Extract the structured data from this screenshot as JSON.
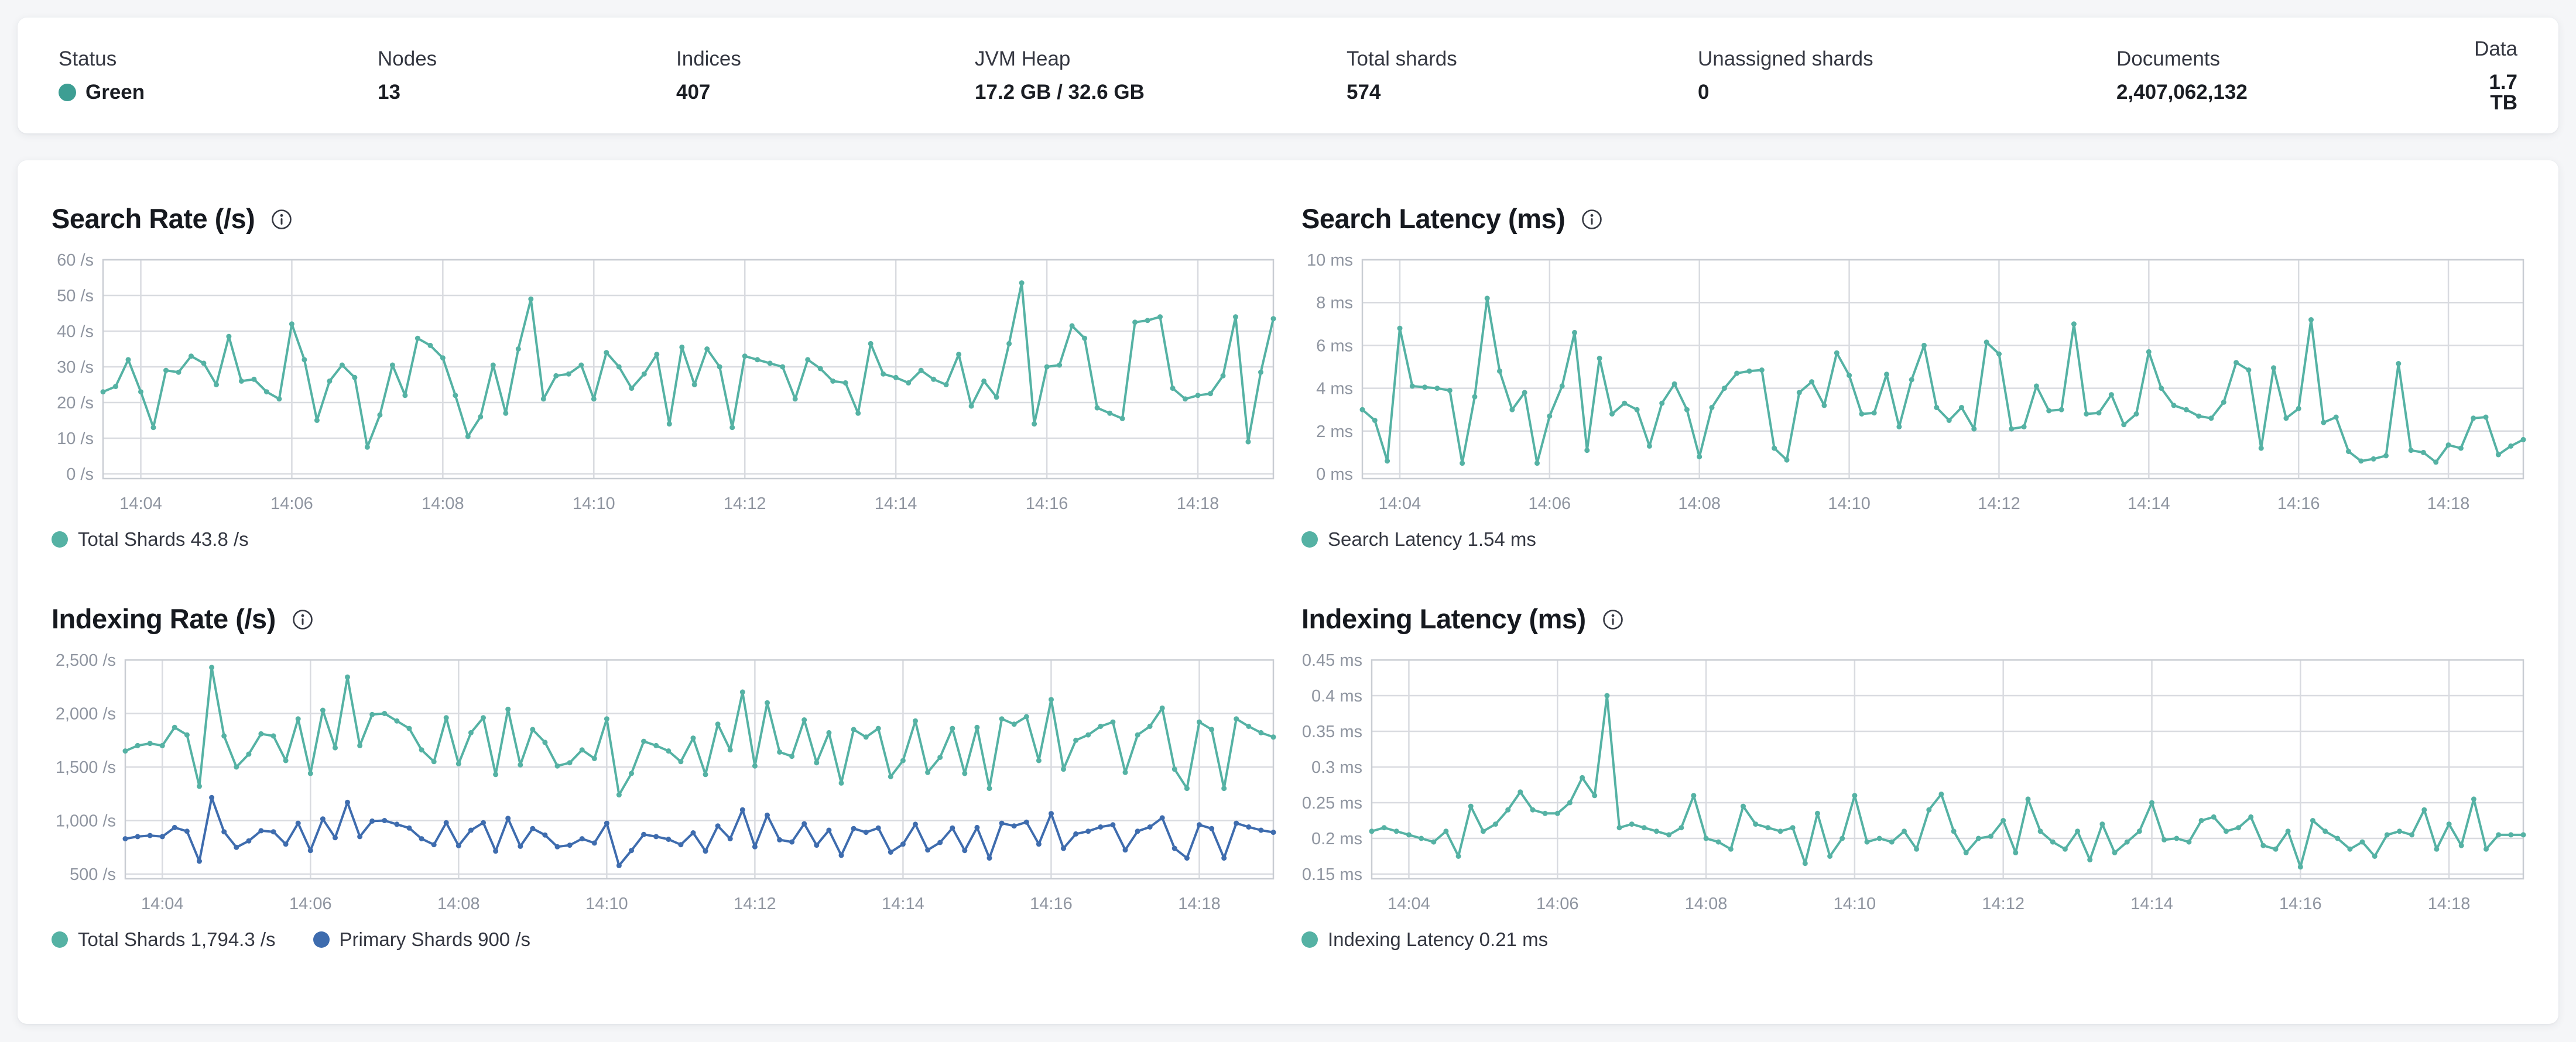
{
  "status_bar": {
    "items": [
      {
        "label": "Status",
        "value": "Green",
        "health_dot_color": "#3d9e93"
      },
      {
        "label": "Nodes",
        "value": "13"
      },
      {
        "label": "Indices",
        "value": "407"
      },
      {
        "label": "JVM Heap",
        "value": "17.2 GB / 32.6 GB"
      },
      {
        "label": "Total shards",
        "value": "574"
      },
      {
        "label": "Unassigned shards",
        "value": "0"
      },
      {
        "label": "Documents",
        "value": "2,407,062,132"
      },
      {
        "label": "Data",
        "value": "1.7 TB"
      }
    ]
  },
  "colors": {
    "teal_series": "#55b2a4",
    "blue_series": "#3e6cae",
    "grid": "#d9dbe0",
    "plot_border": "#c9cdd3",
    "axis_text": "#8f95a0",
    "title_text": "#16191f"
  },
  "chart_data": [
    {
      "type": "line",
      "title": "Search Rate (/s)",
      "ylabel": "/s",
      "y_domain": [
        0,
        60
      ],
      "y_ticks": [
        {
          "value": 0,
          "label": "0 /s"
        },
        {
          "value": 10,
          "label": "10 /s"
        },
        {
          "value": 20,
          "label": "20 /s"
        },
        {
          "value": 30,
          "label": "30 /s"
        },
        {
          "value": 40,
          "label": "40 /s"
        },
        {
          "value": 50,
          "label": "50 /s"
        },
        {
          "value": 60,
          "label": "60 /s"
        }
      ],
      "x_ticks": [
        "14:04",
        "14:06",
        "14:08",
        "14:10",
        "14:12",
        "14:14",
        "14:16",
        "14:18"
      ],
      "x_tick_indices": [
        3,
        15,
        27,
        39,
        51,
        63,
        75,
        87
      ],
      "grid": true,
      "legend_position": "bottom",
      "legend": [
        {
          "label": "Total Shards 43.8 /s",
          "color": "#55b2a4"
        }
      ],
      "series": [
        {
          "name": "Total Shards",
          "color": "#55b2a4",
          "values": [
            23,
            24.5,
            32,
            23,
            13,
            29,
            28.5,
            33,
            31,
            25,
            38.5,
            26,
            26.5,
            23,
            21,
            42,
            32,
            15,
            26,
            30.5,
            27,
            7.5,
            16.5,
            30.5,
            22,
            38,
            36,
            32.5,
            22,
            10.5,
            16,
            30.5,
            17,
            35,
            49,
            21,
            27.5,
            28,
            30.5,
            21,
            34,
            30,
            24,
            28,
            33.5,
            14,
            35.5,
            25,
            35,
            30,
            13,
            33,
            32,
            31,
            30,
            21,
            32,
            29.5,
            26,
            25.5,
            17,
            36.5,
            28,
            27,
            25.5,
            29,
            26.5,
            25,
            33.5,
            19,
            26,
            21.5,
            36.5,
            53.5,
            14,
            30,
            30.5,
            41.5,
            38,
            18.5,
            17,
            15.5,
            42.5,
            43,
            44,
            24,
            21,
            22,
            22.5,
            27.5,
            44,
            9,
            28.5,
            43.5
          ]
        }
      ]
    },
    {
      "type": "line",
      "title": "Search Latency (ms)",
      "ylabel": "ms",
      "y_domain": [
        0,
        10
      ],
      "y_ticks": [
        {
          "value": 0,
          "label": "0 ms"
        },
        {
          "value": 2,
          "label": "2 ms"
        },
        {
          "value": 4,
          "label": "4 ms"
        },
        {
          "value": 6,
          "label": "6 ms"
        },
        {
          "value": 8,
          "label": "8 ms"
        },
        {
          "value": 10,
          "label": "10 ms"
        }
      ],
      "x_ticks": [
        "14:04",
        "14:06",
        "14:08",
        "14:10",
        "14:12",
        "14:14",
        "14:16",
        "14:18"
      ],
      "x_tick_indices": [
        3,
        15,
        27,
        39,
        51,
        63,
        75,
        87
      ],
      "grid": true,
      "legend_position": "bottom",
      "legend": [
        {
          "label": "Search Latency 1.54 ms",
          "color": "#55b2a4"
        }
      ],
      "series": [
        {
          "name": "Search Latency",
          "color": "#55b2a4",
          "values": [
            3.0,
            2.5,
            0.6,
            6.8,
            4.1,
            4.05,
            4.0,
            3.9,
            0.5,
            3.6,
            8.2,
            4.8,
            3.0,
            3.8,
            0.5,
            2.7,
            4.1,
            6.6,
            1.1,
            5.4,
            2.8,
            3.3,
            3.0,
            1.3,
            3.3,
            4.2,
            3.0,
            0.8,
            3.1,
            4.0,
            4.7,
            4.8,
            4.85,
            1.2,
            0.65,
            3.8,
            4.3,
            3.2,
            5.65,
            4.6,
            2.8,
            2.85,
            4.65,
            2.2,
            4.4,
            6.0,
            3.1,
            2.5,
            3.1,
            2.1,
            6.15,
            5.6,
            2.1,
            2.2,
            4.1,
            2.95,
            3.0,
            7.0,
            2.8,
            2.85,
            3.7,
            2.3,
            2.8,
            5.7,
            4.0,
            3.2,
            3.0,
            2.7,
            2.6,
            3.35,
            5.2,
            4.85,
            1.2,
            4.95,
            2.6,
            3.05,
            7.2,
            2.4,
            2.65,
            1.05,
            0.6,
            0.7,
            0.85,
            5.15,
            1.1,
            1.0,
            0.55,
            1.35,
            1.2,
            2.6,
            2.65,
            0.9,
            1.3,
            1.6
          ]
        }
      ]
    },
    {
      "type": "line",
      "title": "Indexing Rate (/s)",
      "ylabel": "/s",
      "y_domain": [
        500,
        2500
      ],
      "y_ticks": [
        {
          "value": 500,
          "label": "500 /s"
        },
        {
          "value": 1000,
          "label": "1,000 /s"
        },
        {
          "value": 1500,
          "label": "1,500 /s"
        },
        {
          "value": 2000,
          "label": "2,000 /s"
        },
        {
          "value": 2500,
          "label": "2,500 /s"
        }
      ],
      "x_ticks": [
        "14:04",
        "14:06",
        "14:08",
        "14:10",
        "14:12",
        "14:14",
        "14:16",
        "14:18"
      ],
      "x_tick_indices": [
        3,
        15,
        27,
        39,
        51,
        63,
        75,
        87
      ],
      "grid": true,
      "legend_position": "bottom",
      "legend": [
        {
          "label": "Total Shards 1,794.3 /s",
          "color": "#55b2a4"
        },
        {
          "label": "Primary Shards 900 /s",
          "color": "#3e6cae"
        }
      ],
      "series": [
        {
          "name": "Total Shards",
          "color": "#55b2a4",
          "values": [
            1650,
            1700,
            1720,
            1700,
            1870,
            1800,
            1320,
            2430,
            1790,
            1500,
            1620,
            1810,
            1790,
            1560,
            1950,
            1440,
            2030,
            1680,
            2340,
            1700,
            1990,
            2000,
            1930,
            1860,
            1660,
            1550,
            1960,
            1530,
            1820,
            1960,
            1430,
            2040,
            1520,
            1850,
            1730,
            1510,
            1540,
            1660,
            1580,
            1950,
            1240,
            1440,
            1740,
            1700,
            1650,
            1550,
            1770,
            1430,
            1900,
            1660,
            2200,
            1510,
            2100,
            1640,
            1600,
            1940,
            1540,
            1820,
            1350,
            1850,
            1780,
            1860,
            1410,
            1560,
            1930,
            1450,
            1590,
            1860,
            1440,
            1870,
            1300,
            1950,
            1900,
            1970,
            1560,
            2130,
            1480,
            1750,
            1800,
            1880,
            1920,
            1450,
            1800,
            1880,
            2050,
            1480,
            1300,
            1920,
            1850,
            1300,
            1950,
            1880,
            1820,
            1780
          ]
        },
        {
          "name": "Primary Shards",
          "color": "#3e6cae",
          "values": [
            830,
            850,
            860,
            850,
            935,
            900,
            620,
            1215,
            895,
            750,
            810,
            905,
            895,
            780,
            975,
            720,
            1015,
            840,
            1170,
            850,
            995,
            1000,
            965,
            930,
            830,
            775,
            980,
            765,
            910,
            980,
            715,
            1020,
            760,
            925,
            865,
            755,
            770,
            830,
            790,
            975,
            580,
            720,
            870,
            850,
            825,
            775,
            885,
            715,
            950,
            830,
            1100,
            755,
            1050,
            820,
            800,
            970,
            770,
            910,
            675,
            925,
            890,
            930,
            705,
            780,
            965,
            725,
            795,
            930,
            720,
            935,
            650,
            975,
            950,
            985,
            780,
            1065,
            740,
            875,
            900,
            940,
            960,
            725,
            900,
            940,
            1025,
            740,
            650,
            960,
            925,
            650,
            975,
            940,
            910,
            890
          ]
        }
      ]
    },
    {
      "type": "line",
      "title": "Indexing Latency (ms)",
      "ylabel": "ms",
      "y_domain": [
        0.15,
        0.45
      ],
      "y_ticks": [
        {
          "value": 0.15,
          "label": "0.15 ms"
        },
        {
          "value": 0.2,
          "label": "0.2 ms"
        },
        {
          "value": 0.25,
          "label": "0.25 ms"
        },
        {
          "value": 0.3,
          "label": "0.3 ms"
        },
        {
          "value": 0.35,
          "label": "0.35 ms"
        },
        {
          "value": 0.4,
          "label": "0.4 ms"
        },
        {
          "value": 0.45,
          "label": "0.45 ms"
        }
      ],
      "x_ticks": [
        "14:04",
        "14:06",
        "14:08",
        "14:10",
        "14:12",
        "14:14",
        "14:16",
        "14:18"
      ],
      "x_tick_indices": [
        3,
        15,
        27,
        39,
        51,
        63,
        75,
        87
      ],
      "grid": true,
      "legend_position": "bottom",
      "legend": [
        {
          "label": "Indexing Latency 0.21 ms",
          "color": "#55b2a4"
        }
      ],
      "series": [
        {
          "name": "Indexing Latency",
          "color": "#55b2a4",
          "values": [
            0.21,
            0.215,
            0.21,
            0.205,
            0.2,
            0.195,
            0.21,
            0.175,
            0.245,
            0.21,
            0.22,
            0.24,
            0.265,
            0.24,
            0.235,
            0.235,
            0.25,
            0.285,
            0.26,
            0.4,
            0.215,
            0.22,
            0.215,
            0.21,
            0.205,
            0.215,
            0.26,
            0.2,
            0.195,
            0.185,
            0.245,
            0.22,
            0.215,
            0.21,
            0.215,
            0.165,
            0.235,
            0.175,
            0.2,
            0.26,
            0.195,
            0.2,
            0.195,
            0.21,
            0.185,
            0.24,
            0.262,
            0.21,
            0.18,
            0.2,
            0.203,
            0.225,
            0.18,
            0.255,
            0.21,
            0.195,
            0.185,
            0.21,
            0.17,
            0.22,
            0.18,
            0.195,
            0.21,
            0.25,
            0.198,
            0.2,
            0.195,
            0.225,
            0.23,
            0.21,
            0.215,
            0.23,
            0.19,
            0.185,
            0.21,
            0.16,
            0.225,
            0.21,
            0.2,
            0.185,
            0.195,
            0.175,
            0.205,
            0.21,
            0.205,
            0.24,
            0.185,
            0.22,
            0.19,
            0.255,
            0.185,
            0.205,
            0.205,
            0.205
          ]
        }
      ]
    }
  ]
}
